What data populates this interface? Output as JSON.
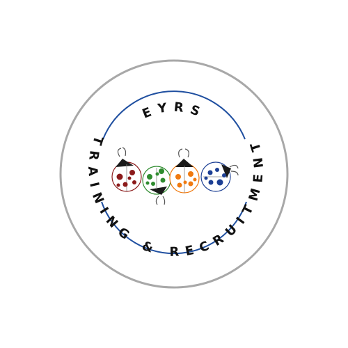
{
  "logo": {
    "top_text": "EYRS",
    "ring_text": "TRAINING & RECRUITMENT",
    "colors": {
      "outer_ring": "#a8a8a8",
      "inner_arc": "#1f4fa0",
      "text": "#111111",
      "ladybug_head": "#1a1a1a",
      "ladybug_red": "#8b1a1a",
      "ladybug_green": "#2e8b2e",
      "ladybug_orange": "#f07a10",
      "ladybug_blue": "#1c3f94"
    },
    "ladybugs": [
      {
        "color_key": "ladybug_red",
        "name": "red"
      },
      {
        "color_key": "ladybug_green",
        "name": "green"
      },
      {
        "color_key": "ladybug_orange",
        "name": "orange"
      },
      {
        "color_key": "ladybug_blue",
        "name": "blue"
      }
    ]
  }
}
